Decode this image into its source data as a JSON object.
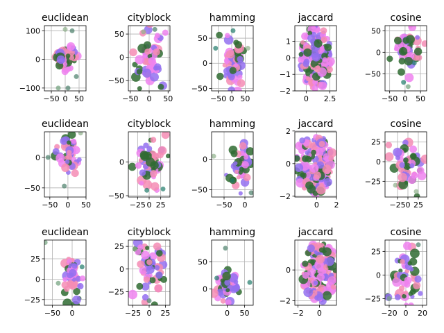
{
  "colors": [
    "#2f6b31",
    "#ee82ee",
    "#f58cb4",
    "#9370f0",
    "#4a7f6a",
    "#8fb08a",
    "#6fa07a",
    "#1f7a6a"
  ],
  "chart_data": [
    {
      "type": "scatter",
      "title": "euclidean",
      "xlim": [
        -75,
        75
      ],
      "ylim": [
        -110,
        118
      ],
      "xticks": [
        -50,
        0,
        50
      ],
      "yticks": [
        -100,
        0,
        100
      ],
      "grid": true,
      "clusters": [
        {
          "cx": 5,
          "cy": 10,
          "rx": 38,
          "ry": 40,
          "n": 48
        },
        {
          "cx": -12,
          "cy": -15,
          "rx": 20,
          "ry": 30,
          "n": 10
        }
      ],
      "outliers": [
        [
          0,
          105
        ],
        [
          25,
          100
        ],
        [
          -25,
          -100
        ],
        [
          10,
          -100
        ],
        [
          40,
          -60
        ]
      ]
    },
    {
      "type": "scatter",
      "title": "cityblock",
      "xlim": [
        -55,
        55
      ],
      "ylim": [
        -72,
        68
      ],
      "xticks": [
        -50,
        0,
        50
      ],
      "yticks": [
        -50,
        0,
        50
      ],
      "grid": true,
      "clusters": [
        {
          "cx": -2,
          "cy": 0,
          "rx": 38,
          "ry": 55,
          "n": 60
        }
      ],
      "outliers": [
        [
          15,
          60
        ],
        [
          -15,
          55
        ]
      ]
    },
    {
      "type": "scatter",
      "title": "hamming",
      "xlim": [
        -75,
        80
      ],
      "ylim": [
        -55,
        75
      ],
      "xticks": [
        -50,
        0,
        50
      ],
      "yticks": [
        -50,
        0,
        50
      ],
      "grid": true,
      "clusters": [
        {
          "cx": 5,
          "cy": 5,
          "rx": 40,
          "ry": 50,
          "n": 58
        }
      ],
      "outliers": [
        [
          -60,
          30
        ],
        [
          60,
          30
        ],
        [
          5,
          65
        ]
      ]
    },
    {
      "type": "scatter",
      "title": "jaccard",
      "xlim": [
        -1.2,
        3.2
      ],
      "ylim": [
        -2.0,
        1.95
      ],
      "xticks": [
        0,
        2.5
      ],
      "yticks": [
        -2,
        -1,
        0,
        1
      ],
      "grid": true,
      "clusters": [
        {
          "cx": 1.0,
          "cy": 0.0,
          "rx": 1.7,
          "ry": 1.9,
          "n": 150
        }
      ],
      "outliers": []
    },
    {
      "type": "scatter",
      "title": "cosine",
      "xlim": [
        -65,
        70
      ],
      "ylim": [
        -90,
        62
      ],
      "xticks": [
        -50,
        0,
        50
      ],
      "yticks": [
        -50,
        0,
        50
      ],
      "grid": true,
      "clusters": [
        {
          "cx": 10,
          "cy": 5,
          "rx": 45,
          "ry": 45,
          "n": 50
        }
      ],
      "outliers": [
        [
          10,
          -80
        ],
        [
          -5,
          -70
        ],
        [
          30,
          -25
        ]
      ]
    },
    {
      "type": "scatter",
      "title": "euclidean",
      "xlim": [
        -65,
        50
      ],
      "ylim": [
        -65,
        42
      ],
      "xticks": [
        -50,
        0,
        50
      ],
      "yticks": [
        -50,
        0
      ],
      "grid": true,
      "clusters": [
        {
          "cx": 0,
          "cy": 5,
          "rx": 38,
          "ry": 35,
          "n": 45
        }
      ],
      "outliers": [
        [
          -10,
          -47
        ],
        [
          35,
          40
        ],
        [
          -55,
          0
        ]
      ]
    },
    {
      "type": "scatter",
      "title": "cityblock",
      "xlim": [
        -45,
        45
      ],
      "ylim": [
        -52,
        45
      ],
      "xticks": [
        -25,
        0,
        25
      ],
      "yticks": [
        -50,
        0
      ],
      "grid": true,
      "clusters": [
        {
          "cx": 0,
          "cy": 0,
          "rx": 35,
          "ry": 40,
          "n": 55
        }
      ],
      "outliers": [
        [
          -5,
          -42
        ],
        [
          30,
          -40
        ]
      ]
    },
    {
      "type": "scatter",
      "title": "hamming",
      "xlim": [
        -80,
        20
      ],
      "ylim": [
        -62,
        45
      ],
      "xticks": [
        -50,
        0
      ],
      "yticks": [
        -50,
        0
      ],
      "grid": true,
      "clusters": [
        {
          "cx": -10,
          "cy": -5,
          "rx": 28,
          "ry": 35,
          "n": 50
        }
      ],
      "outliers": [
        [
          -75,
          5
        ],
        [
          15,
          -55
        ],
        [
          -30,
          -35
        ]
      ]
    },
    {
      "type": "scatter",
      "title": "jaccard",
      "xlim": [
        -2.2,
        2.0
      ],
      "ylim": [
        -2.05,
        1.95
      ],
      "xticks": [
        0,
        2
      ],
      "yticks": [
        -2,
        0,
        2
      ],
      "grid": true,
      "clusters": [
        {
          "cx": -0.2,
          "cy": 0.0,
          "rx": 1.9,
          "ry": 1.9,
          "n": 150
        }
      ],
      "outliers": []
    },
    {
      "type": "scatter",
      "title": "cosine",
      "xlim": [
        -55,
        45
      ],
      "ylim": [
        -45,
        38
      ],
      "xticks": [
        -25,
        0,
        25
      ],
      "yticks": [
        -25,
        0,
        25
      ],
      "grid": true,
      "clusters": [
        {
          "cx": 0,
          "cy": 0,
          "rx": 38,
          "ry": 35,
          "n": 50
        }
      ],
      "outliers": [
        [
          -30,
          -30
        ],
        [
          20,
          -38
        ]
      ]
    },
    {
      "type": "scatter",
      "title": "euclidean",
      "xlim": [
        -70,
        35
      ],
      "ylim": [
        -32,
        48
      ],
      "xticks": [
        -50,
        0
      ],
      "yticks": [
        -25,
        0,
        25
      ],
      "grid": true,
      "clusters": [
        {
          "cx": 0,
          "cy": 2,
          "rx": 22,
          "ry": 30,
          "n": 45
        }
      ],
      "outliers": [
        [
          -68,
          45
        ],
        [
          25,
          15
        ],
        [
          -35,
          -5
        ]
      ]
    },
    {
      "type": "scatter",
      "title": "cityblock",
      "xlim": [
        -32,
        32
      ],
      "ylim": [
        -40,
        32
      ],
      "xticks": [
        -25,
        0,
        25
      ],
      "yticks": [
        -25,
        0,
        25
      ],
      "grid": true,
      "clusters": [
        {
          "cx": 0,
          "cy": 0,
          "rx": 25,
          "ry": 28,
          "n": 55
        }
      ],
      "outliers": [
        [
          0,
          -35
        ],
        [
          -22,
          22
        ]
      ]
    },
    {
      "type": "scatter",
      "title": "hamming",
      "xlim": [
        -45,
        75
      ],
      "ylim": [
        -30,
        90
      ],
      "xticks": [
        0,
        50
      ],
      "yticks": [
        0,
        50
      ],
      "grid": true,
      "clusters": [
        {
          "cx": 5,
          "cy": 5,
          "rx": 30,
          "ry": 25,
          "n": 50
        }
      ],
      "outliers": [
        [
          -5,
          75
        ],
        [
          65,
          12
        ],
        [
          -30,
          20
        ]
      ]
    },
    {
      "type": "scatter",
      "title": "jaccard",
      "xlim": [
        -2.3,
        1.6
      ],
      "ylim": [
        -2.3,
        1.95
      ],
      "xticks": [
        -2,
        0
      ],
      "yticks": [
        -2,
        0
      ],
      "grid": true,
      "clusters": [
        {
          "cx": 0.0,
          "cy": -0.1,
          "rx": 1.6,
          "ry": 2.0,
          "n": 150
        }
      ],
      "outliers": []
    },
    {
      "type": "scatter",
      "title": "cosine",
      "xlim": [
        -25,
        25
      ],
      "ylim": [
        -32,
        37
      ],
      "xticks": [
        -20,
        0,
        20
      ],
      "yticks": [
        -25,
        0,
        25
      ],
      "grid": true,
      "clusters": [
        {
          "cx": 0,
          "cy": 0,
          "rx": 18,
          "ry": 30,
          "n": 50
        }
      ],
      "outliers": [
        [
          -20,
          -25
        ],
        [
          15,
          32
        ]
      ]
    }
  ]
}
